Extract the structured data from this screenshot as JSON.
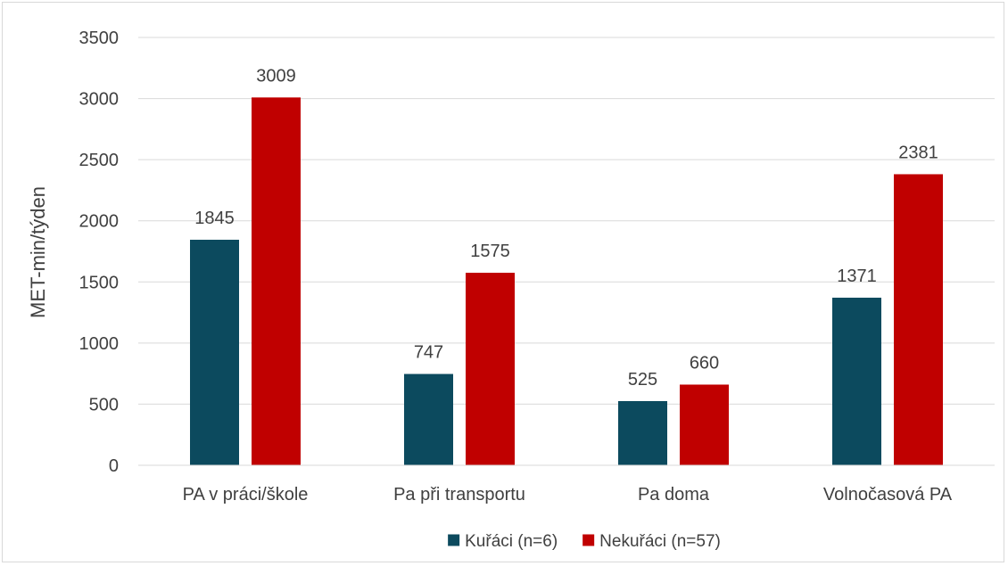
{
  "chart_data": {
    "type": "bar",
    "categories": [
      "PA v práci/škole",
      "Pa při transportu",
      "Pa doma",
      "Volnočasová PA"
    ],
    "series": [
      {
        "name": "Kuřáci (n=6)",
        "color": "#0c4a5e",
        "values": [
          1845,
          747,
          525,
          1371
        ]
      },
      {
        "name": "Nekuřáci (n=57)",
        "color": "#c00000",
        "values": [
          3009,
          1575,
          660,
          2381
        ]
      }
    ],
    "title": "",
    "xlabel": "",
    "ylabel": "MET-min/týden",
    "ylim": [
      0,
      3500
    ],
    "yticks": [
      0,
      500,
      1000,
      1500,
      2000,
      2500,
      3000,
      3500
    ],
    "grid": true,
    "data_labels": true,
    "legend_position": "bottom"
  }
}
